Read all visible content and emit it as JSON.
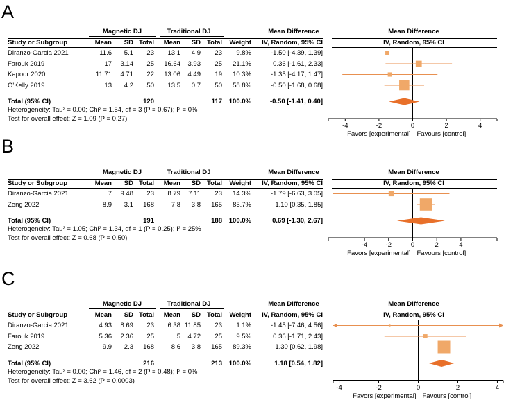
{
  "chart_data": [
    {
      "type": "forest",
      "panel": "A",
      "group_headers": [
        "Magnetic DJ",
        "Traditional DJ",
        "Mean Difference",
        "Mean Difference"
      ],
      "columns": [
        "Study or Subgroup",
        "Mean",
        "SD",
        "Total",
        "Mean",
        "SD",
        "Total",
        "Weight",
        "IV, Random, 95% CI",
        "IV, Random, 95% CI"
      ],
      "studies": [
        {
          "name": "Diranzo-Garcia 2021",
          "m1": "11.6",
          "sd1": "5.1",
          "n1": "23",
          "m2": "13.1",
          "sd2": "4.9",
          "n2": "23",
          "weight": "9.8%",
          "ci": "-1.50 [-4.39, 1.39]",
          "md": -1.5,
          "lo": -4.39,
          "hi": 1.39,
          "w": 9.8
        },
        {
          "name": "Farouk 2019",
          "m1": "17",
          "sd1": "3.14",
          "n1": "25",
          "m2": "16.64",
          "sd2": "3.93",
          "n2": "25",
          "weight": "21.1%",
          "ci": "0.36 [-1.61, 2.33]",
          "md": 0.36,
          "lo": -1.61,
          "hi": 2.33,
          "w": 21.1
        },
        {
          "name": "Kapoor 2020",
          "m1": "11.71",
          "sd1": "4.71",
          "n1": "22",
          "m2": "13.06",
          "sd2": "4.49",
          "n2": "19",
          "weight": "10.3%",
          "ci": "-1.35 [-4.17, 1.47]",
          "md": -1.35,
          "lo": -4.17,
          "hi": 1.47,
          "w": 10.3
        },
        {
          "name": "O'Kelly 2019",
          "m1": "13",
          "sd1": "4.2",
          "n1": "50",
          "m2": "13.5",
          "sd2": "0.7",
          "n2": "50",
          "weight": "58.8%",
          "ci": "-0.50 [-1.68, 0.68]",
          "md": -0.5,
          "lo": -1.68,
          "hi": 0.68,
          "w": 58.8
        }
      ],
      "total": {
        "label": "Total (95% CI)",
        "n1": "120",
        "n2": "117",
        "weight": "100.0%",
        "ci": "-0.50 [-1.41, 0.40]",
        "md": -0.5,
        "lo": -1.41,
        "hi": 0.4
      },
      "heterogeneity": "Heterogeneity: Tau² = 0.00; Chi² = 1.54, df = 3 (P = 0.67); I² = 0%",
      "overall_effect": "Test for overall effect: Z = 1.09 (P = 0.27)",
      "xlim": [
        -5,
        5
      ],
      "ticks": [
        {
          "v": -4,
          "label": "-4"
        },
        {
          "v": -2,
          "label": "-2"
        },
        {
          "v": 0,
          "label": "0"
        },
        {
          "v": 2,
          "label": "2"
        },
        {
          "v": 4,
          "label": "4"
        }
      ],
      "favors_left": "Favors [experimental]",
      "favors_right": "Favours [control]"
    },
    {
      "type": "forest",
      "panel": "B",
      "group_headers": [
        "Magnetic DJ",
        "Traditional DJ",
        "Mean Difference",
        "Mean Difference"
      ],
      "columns": [
        "Study or Subgroup",
        "Mean",
        "SD",
        "Total",
        "Mean",
        "SD",
        "Total",
        "Weight",
        "IV, Random, 95% CI",
        "IV, Random, 95% CI"
      ],
      "studies": [
        {
          "name": "Diranzo-Garcia 2021",
          "m1": "7",
          "sd1": "9.48",
          "n1": "23",
          "m2": "8.79",
          "sd2": "7.11",
          "n2": "23",
          "weight": "14.3%",
          "ci": "-1.79 [-6.63, 3.05]",
          "md": -1.79,
          "lo": -6.63,
          "hi": 3.05,
          "w": 14.3
        },
        {
          "name": "Zeng 2022",
          "m1": "8.9",
          "sd1": "3.1",
          "n1": "168",
          "m2": "7.8",
          "sd2": "3.8",
          "n2": "165",
          "weight": "85.7%",
          "ci": "1.10 [0.35, 1.85]",
          "md": 1.1,
          "lo": 0.35,
          "hi": 1.85,
          "w": 85.7
        }
      ],
      "total": {
        "label": "Total (95% CI)",
        "n1": "191",
        "n2": "188",
        "weight": "100.0%",
        "ci": "0.69 [-1.30, 2.67]",
        "md": 0.69,
        "lo": -1.3,
        "hi": 2.67
      },
      "heterogeneity": "Heterogeneity: Tau² = 1.05; Chi² = 1.34, df = 1 (P = 0.25); I² = 25%",
      "overall_effect": "Test for overall effect: Z = 0.68 (P = 0.50)",
      "xlim": [
        -7,
        7
      ],
      "ticks": [
        {
          "v": -4,
          "label": "-4"
        },
        {
          "v": -2,
          "label": "-2"
        },
        {
          "v": 0,
          "label": "0"
        },
        {
          "v": 2,
          "label": "2"
        },
        {
          "v": 4,
          "label": "4"
        }
      ],
      "favors_left": "Favors [experimental]",
      "favors_right": "Favours [control]"
    },
    {
      "type": "forest",
      "panel": "C",
      "group_headers": [
        "Magnetic DJ",
        "Traditional DJ",
        "Mean Difference",
        "Mean Difference"
      ],
      "columns": [
        "Study or Subgroup",
        "Mean",
        "SD",
        "Total",
        "Mean",
        "SD",
        "Total",
        "Weight",
        "IV, Random, 95% CI",
        "IV, Random, 95% CI"
      ],
      "studies": [
        {
          "name": "Diranzo-Garcia 2021",
          "m1": "4.93",
          "sd1": "8.69",
          "n1": "23",
          "m2": "6.38",
          "sd2": "11.85",
          "n2": "23",
          "weight": "1.1%",
          "ci": "-1.45 [-7.46, 4.56]",
          "md": -1.45,
          "lo": -7.46,
          "hi": 4.56,
          "w": 1.1
        },
        {
          "name": "Farouk 2019",
          "m1": "5.36",
          "sd1": "2.36",
          "n1": "25",
          "m2": "5",
          "sd2": "4.72",
          "n2": "25",
          "weight": "9.5%",
          "ci": "0.36 [-1.71, 2.43]",
          "md": 0.36,
          "lo": -1.71,
          "hi": 2.43,
          "w": 9.5
        },
        {
          "name": "Zeng 2022",
          "m1": "9.9",
          "sd1": "2.3",
          "n1": "168",
          "m2": "8.6",
          "sd2": "3.8",
          "n2": "165",
          "weight": "89.3%",
          "ci": "1.30 [0.62, 1.98]",
          "md": 1.3,
          "lo": 0.62,
          "hi": 1.98,
          "w": 89.3
        }
      ],
      "total": {
        "label": "Total (95% CI)",
        "n1": "216",
        "n2": "213",
        "weight": "100.0%",
        "ci": "1.18 [0.54, 1.82]",
        "md": 1.18,
        "lo": 0.54,
        "hi": 1.82
      },
      "heterogeneity": "Heterogeneity: Tau² = 0.00; Chi² = 1.46, df = 2 (P = 0.48); I² = 0%",
      "overall_effect": "Test for overall effect: Z = 3.62 (P = 0.0003)",
      "xlim": [
        -4.3,
        4.3
      ],
      "ticks": [
        {
          "v": -4,
          "label": "-4"
        },
        {
          "v": -2,
          "label": "-2"
        },
        {
          "v": 0,
          "label": "0"
        },
        {
          "v": 2,
          "label": "2"
        },
        {
          "v": 4,
          "label": "4"
        }
      ],
      "favors_left": "Favors [experimental]",
      "favors_right": "Favours [control]"
    }
  ],
  "colors": {
    "marker": "#f0a868",
    "diamond": "#e8702a",
    "line": "#e89050",
    "axis": "#000000"
  }
}
